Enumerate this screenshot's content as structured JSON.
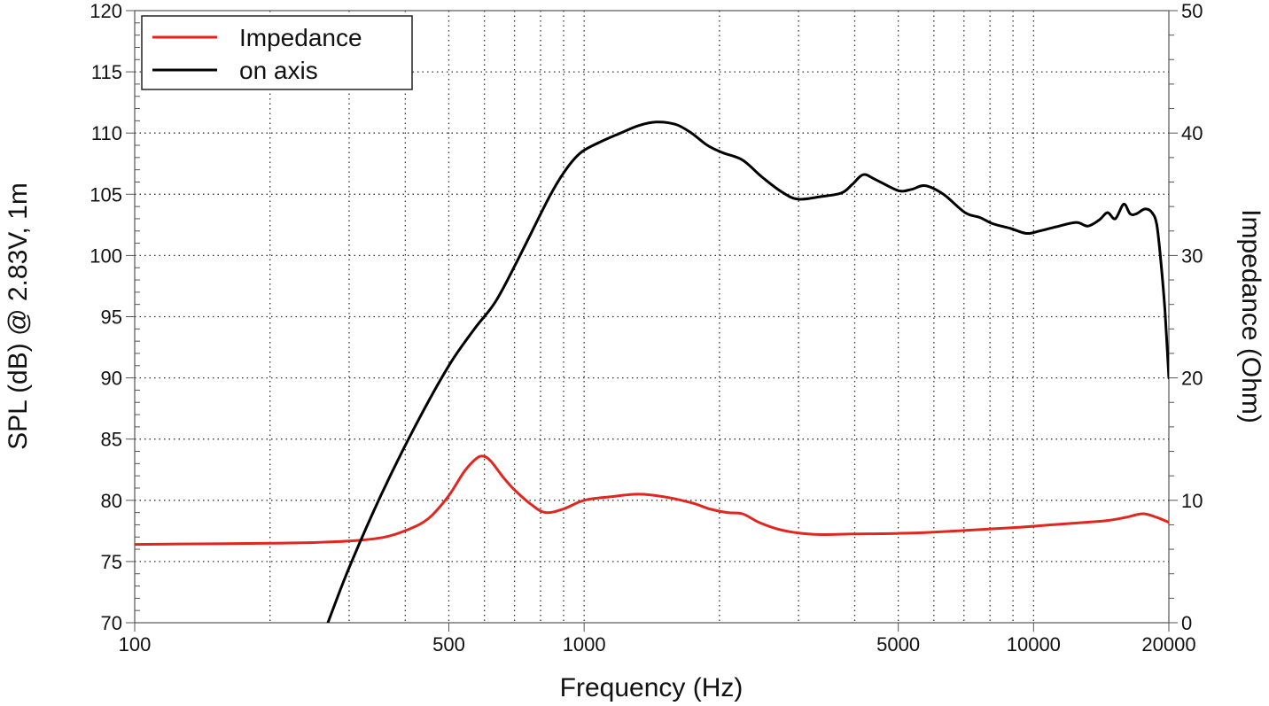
{
  "chart_data": {
    "type": "line",
    "title": "",
    "xlabel": "Frequency (Hz)",
    "ylabel": "SPL (dB) @ 2.83V, 1m",
    "y2label": "Impedance (Ohm)",
    "xscale": "log",
    "xlim": [
      100,
      20000
    ],
    "ylim": [
      70,
      120
    ],
    "y2lim": [
      0,
      50
    ],
    "grid": true,
    "legend_position": "upper-left",
    "x_ticks": [
      100,
      500,
      1000,
      5000,
      10000,
      20000
    ],
    "x_tick_labels": [
      "100",
      "500",
      "1000",
      "5000",
      "10000",
      "20000"
    ],
    "x_minor_grid": [
      200,
      300,
      400,
      600,
      700,
      800,
      900,
      2000,
      3000,
      4000,
      6000,
      7000,
      8000,
      9000
    ],
    "y_ticks": [
      70,
      75,
      80,
      85,
      90,
      95,
      100,
      105,
      110,
      115,
      120
    ],
    "y2_ticks": [
      0,
      10,
      20,
      30,
      40,
      50
    ],
    "series": [
      {
        "name": "Impedance",
        "axis": "right",
        "color": "#e0261e",
        "x": [
          100,
          150,
          200,
          250,
          308,
          360,
          405,
          450,
          498,
          540,
          575,
          597,
          620,
          660,
          698,
          760,
          820,
          900,
          1000,
          1150,
          1320,
          1500,
          1733,
          1900,
          2080,
          2250,
          2450,
          2730,
          3050,
          3420,
          4000,
          5000,
          6000,
          7500,
          9300,
          11000,
          13000,
          14600,
          16000,
          17500,
          18800,
          20000
        ],
        "values": [
          6.4,
          6.45,
          6.5,
          6.55,
          6.7,
          7.0,
          7.6,
          8.5,
          10.3,
          12.3,
          13.4,
          13.6,
          13.2,
          11.9,
          10.9,
          9.7,
          9.0,
          9.3,
          10.0,
          10.3,
          10.5,
          10.3,
          9.8,
          9.3,
          9.0,
          8.9,
          8.2,
          7.6,
          7.3,
          7.2,
          7.25,
          7.3,
          7.4,
          7.6,
          7.8,
          8.0,
          8.2,
          8.35,
          8.6,
          8.9,
          8.6,
          8.2
        ]
      },
      {
        "name": "on axis",
        "axis": "left",
        "color": "#000000",
        "x": [
          269,
          300,
          353,
          420,
          500,
          570,
          637,
          720,
          837,
          910,
          983,
          1090,
          1205,
          1320,
          1446,
          1600,
          1733,
          1880,
          2030,
          2250,
          2490,
          2750,
          2985,
          3350,
          3735,
          3950,
          4180,
          4450,
          5000,
          5350,
          5740,
          6300,
          7040,
          7600,
          8110,
          8900,
          9640,
          10300,
          11120,
          12430,
          13200,
          14000,
          14600,
          15200,
          15870,
          16400,
          16920,
          17700,
          18350,
          18800,
          19200,
          19600,
          20000
        ],
        "values": [
          70,
          74.5,
          80.4,
          86.0,
          91.0,
          94.0,
          96.3,
          100.0,
          104.8,
          107.0,
          108.4,
          109.3,
          110.0,
          110.6,
          110.9,
          110.7,
          110.0,
          109.0,
          108.4,
          107.8,
          106.4,
          105.2,
          104.6,
          104.8,
          105.1,
          105.8,
          106.6,
          106.2,
          105.3,
          105.4,
          105.7,
          105.0,
          103.5,
          103.1,
          102.6,
          102.2,
          101.8,
          102.0,
          102.3,
          102.7,
          102.4,
          102.9,
          103.5,
          103.0,
          104.2,
          103.4,
          103.4,
          103.8,
          103.5,
          102.5,
          99.5,
          95.5,
          90.0
        ]
      }
    ]
  },
  "legend": {
    "items": [
      {
        "label": "Impedance",
        "color": "#e0261e"
      },
      {
        "label": "on axis",
        "color": "#000000"
      }
    ]
  },
  "axes": {
    "x_title": "Frequency (Hz)",
    "y_left_title": "SPL (dB) @ 2.83V, 1m",
    "y_right_title": "Impedance (Ohm)"
  }
}
